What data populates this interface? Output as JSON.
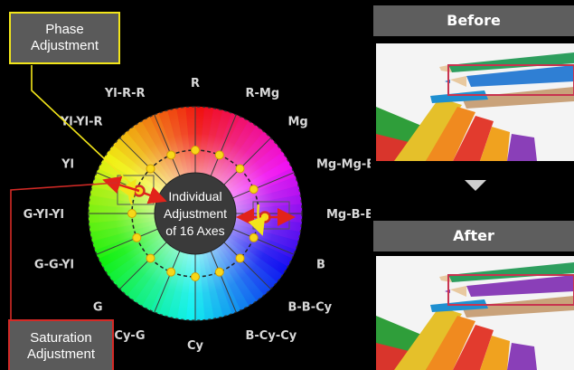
{
  "callouts": {
    "phase_line1": "Phase",
    "phase_line2": "Adjustment",
    "saturation_line1": "Saturation",
    "saturation_line2": "Adjustment"
  },
  "wheel": {
    "center_line1": "Individual",
    "center_line2": "Adjustment",
    "center_line3": "of 16 Axes",
    "axes": [
      "R",
      "R-Mg",
      "Mg",
      "Mg-Mg-B",
      "Mg-B-B",
      "B",
      "B-B-Cy",
      "B-Cy-Cy",
      "Cy",
      "Cy-G",
      "G",
      "G-G-Yl",
      "G-Yl-Yl",
      "Yl",
      "Yl-Yl-R",
      "Yl-R-R"
    ]
  },
  "comparison": {
    "before_label": "Before",
    "after_label": "After"
  },
  "colors": {
    "phase_accent": "#f2e51a",
    "saturation_accent": "#d42a26",
    "highlight_box": "#c8334f",
    "header_bg": "#5e5e5e"
  }
}
